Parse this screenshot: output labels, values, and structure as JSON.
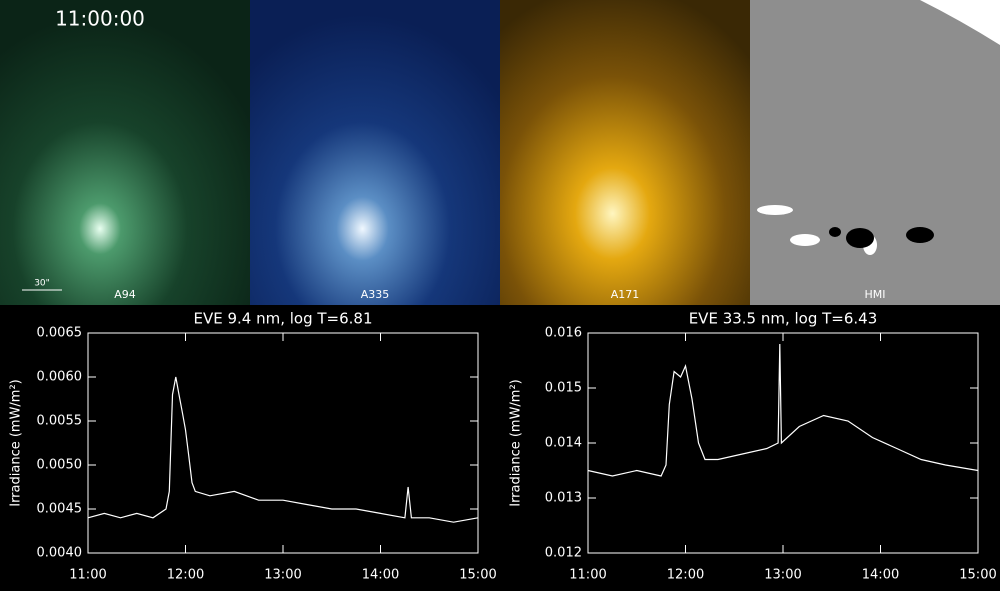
{
  "panels": {
    "time": "11:00:00",
    "scale": "30\"",
    "labels": [
      "A94",
      "A335",
      "A171",
      "HMI"
    ]
  },
  "chart_data": [
    {
      "type": "line",
      "title": "EVE 9.4 nm, log T=6.81",
      "ylabel": "Irradiance (mW/m²)",
      "color": "#ffffff",
      "x": [
        "11:00",
        "11:10",
        "11:20",
        "11:30",
        "11:40",
        "11:48",
        "11:50",
        "11:52",
        "11:54",
        "11:56",
        "11:58",
        "12:00",
        "12:02",
        "12:04",
        "12:06",
        "12:15",
        "12:30",
        "12:45",
        "13:00",
        "13:15",
        "13:30",
        "13:45",
        "14:00",
        "14:15",
        "14:17",
        "14:19",
        "14:30",
        "14:45",
        "15:00"
      ],
      "values": [
        0.0044,
        0.00445,
        0.0044,
        0.00445,
        0.0044,
        0.0045,
        0.0047,
        0.0058,
        0.006,
        0.0058,
        0.0056,
        0.0054,
        0.0051,
        0.0048,
        0.0047,
        0.00465,
        0.0047,
        0.0046,
        0.0046,
        0.00455,
        0.0045,
        0.0045,
        0.00445,
        0.0044,
        0.00475,
        0.0044,
        0.0044,
        0.00435,
        0.0044
      ],
      "xlim": [
        "11:00",
        "15:00"
      ],
      "xticks": [
        "11:00",
        "12:00",
        "13:00",
        "14:00",
        "15:00"
      ],
      "ylim": [
        0.004,
        0.0065
      ],
      "yticks": [
        {
          "value": 0.004,
          "label": "0.0040"
        },
        0.0045,
        {
          "value": 0.005,
          "label": "0.0050"
        },
        0.0055,
        {
          "value": 0.006,
          "label": "0.0060"
        },
        0.0065
      ]
    },
    {
      "type": "line",
      "title": "EVE 33.5 nm, log T=6.43",
      "ylabel": "Irradiance (mW/m²)",
      "color": "#ffffff",
      "x": [
        "11:00",
        "11:15",
        "11:30",
        "11:45",
        "11:48",
        "11:50",
        "11:53",
        "11:57",
        "12:00",
        "12:04",
        "12:08",
        "12:12",
        "12:20",
        "12:35",
        "12:50",
        "12:57",
        "12:58",
        "12:59",
        "13:10",
        "13:25",
        "13:40",
        "13:55",
        "14:10",
        "14:25",
        "14:40",
        "15:00"
      ],
      "values": [
        0.0135,
        0.0134,
        0.0135,
        0.0134,
        0.0136,
        0.0147,
        0.0153,
        0.0152,
        0.0154,
        0.0148,
        0.014,
        0.0137,
        0.0137,
        0.0138,
        0.0139,
        0.014,
        0.0158,
        0.014,
        0.0143,
        0.0145,
        0.0144,
        0.0141,
        0.0139,
        0.0137,
        0.0136,
        0.0135
      ],
      "xlim": [
        "11:00",
        "15:00"
      ],
      "xticks": [
        "11:00",
        "12:00",
        "13:00",
        "14:00",
        "15:00"
      ],
      "ylim": [
        0.012,
        0.016
      ],
      "yticks": [
        0.012,
        0.013,
        0.014,
        0.015,
        0.016
      ]
    }
  ]
}
